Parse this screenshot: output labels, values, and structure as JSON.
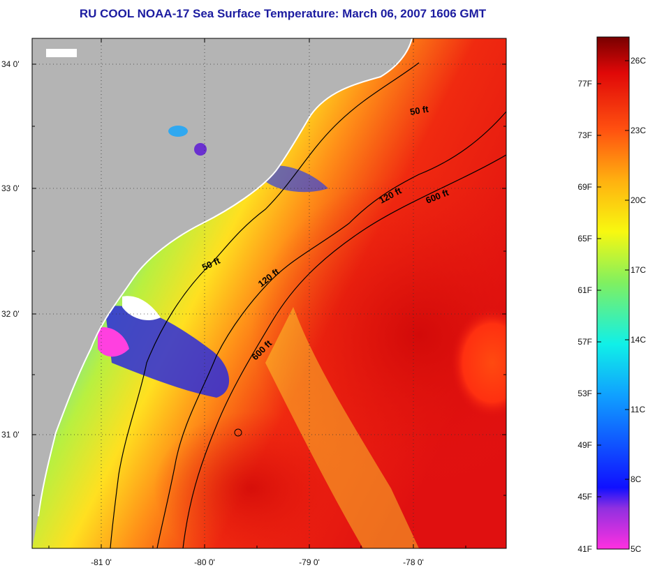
{
  "title": "RU COOL  NOAA-17  Sea Surface Temperature:  March 06, 2007 1606 GMT",
  "map": {
    "lat_ticks": [
      "34 0'",
      "33 0'",
      "32 0'",
      "31 0'"
    ],
    "lon_ticks": [
      "-81 0'",
      "-80 0'",
      "-79 0'",
      "-78 0'"
    ],
    "contours": {
      "c50_a": "50 ft",
      "c50_b": "50 ft",
      "c120_a": "120 ft",
      "c120_b": "120 ft",
      "c600_a": "600 ft",
      "c600_b": "600 ft"
    },
    "colors": {
      "land": "#b4b4b4",
      "warm": "#e41010",
      "mid": "#f5e61a",
      "cool": "#28b4f0",
      "cold": "#2020d8"
    }
  },
  "colorbar": {
    "f_labels": [
      "77F",
      "73F",
      "69F",
      "65F",
      "61F",
      "57F",
      "53F",
      "49F",
      "45F",
      "41F"
    ],
    "c_labels": [
      "26C",
      "23C",
      "20C",
      "17C",
      "14C",
      "11C",
      "8C",
      "5C"
    ]
  }
}
